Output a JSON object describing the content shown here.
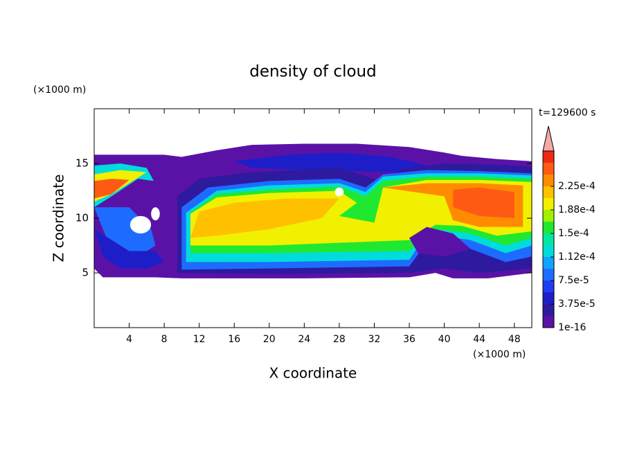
{
  "chart_data": {
    "type": "contour",
    "title": "density of cloud",
    "annotation": "t=129600 s",
    "x_label": "X coordinate",
    "y_label": "Z coordinate",
    "x_unit": "(×1000 m)",
    "y_unit": "(×1000 m)",
    "xlim": [
      0,
      50
    ],
    "xticks": [
      4,
      8,
      12,
      16,
      20,
      24,
      28,
      32,
      36,
      40,
      44,
      48
    ],
    "ylim": [
      0,
      20
    ],
    "yticks": [
      5,
      10,
      15
    ],
    "colorbar": {
      "ticks": [
        1e-16,
        {
          "value": 3.75e-05,
          "label": "3.75e-5"
        },
        {
          "value": 7.5e-05,
          "label": "7.5e-5"
        },
        {
          "value": 0.000112,
          "label": "1.12e-4"
        },
        {
          "value": 0.00015,
          "label": "1.5e-4"
        },
        {
          "value": 0.000188,
          "label": "1.88e-4"
        },
        {
          "value": 0.000225,
          "label": "2.25e-4"
        }
      ],
      "colors": [
        "#5a12a6",
        "#2e1a9e",
        "#1e1ec8",
        "#1e3cf0",
        "#1e6cff",
        "#10a4ff",
        "#00dcdc",
        "#00e8a0",
        "#20e830",
        "#a0f000",
        "#f0f000",
        "#ffc000",
        "#ff8c00",
        "#ff5a14",
        "#f02814"
      ],
      "extend_color": "#f4a8a8"
    }
  }
}
